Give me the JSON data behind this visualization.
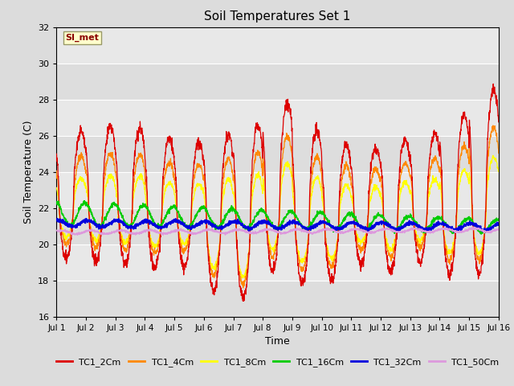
{
  "title": "Soil Temperatures Set 1",
  "xlabel": "Time",
  "ylabel": "Soil Temperature (C)",
  "ylim": [
    16,
    32
  ],
  "yticks": [
    16,
    18,
    20,
    22,
    24,
    26,
    28,
    30,
    32
  ],
  "fig_bg": "#dcdcdc",
  "plot_bg": "#e8e8e8",
  "series_colors": {
    "TC1_2Cm": "#dd0000",
    "TC1_4Cm": "#ff8800",
    "TC1_8Cm": "#ffff00",
    "TC1_16Cm": "#00cc00",
    "TC1_32Cm": "#0000dd",
    "TC1_50Cm": "#dd99dd"
  },
  "annotation_text": "SI_met",
  "n_days": 15,
  "points_per_day": 144,
  "peak_hour": 14,
  "peak_amps_2cm": [
    3.9,
    4.2,
    4.1,
    3.5,
    3.3,
    3.8,
    4.3,
    5.5,
    4.0,
    3.2,
    3.0,
    3.5,
    3.8,
    4.8,
    6.2
  ],
  "mean_temps": {
    "TC1_2Cm": 22.3,
    "TC1_4Cm": 22.0,
    "TC1_8Cm": 21.6,
    "TC1_16Cm": 21.2,
    "TC1_32Cm": 21.0,
    "TC1_50Cm": 20.7
  },
  "night_min_2cm": [
    19.2,
    19.0,
    18.9,
    18.7,
    18.8,
    17.5,
    17.0,
    18.5,
    17.8,
    18.0,
    18.9,
    18.5,
    19.0,
    18.3,
    18.3
  ]
}
